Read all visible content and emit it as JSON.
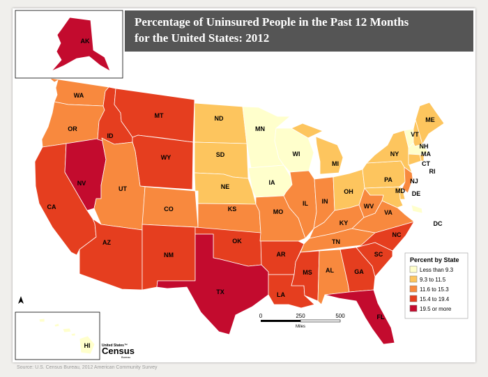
{
  "title": {
    "line1": "Percentage of Uninsured People in the Past 12 Months",
    "line2": "for the United States: 2012"
  },
  "colors": {
    "class1": "#ffffcc",
    "class2": "#fdc55e",
    "class3": "#f8893e",
    "class4": "#e53e1f",
    "class5": "#c30b2e",
    "state_stroke": "#ffffff",
    "title_bar": "#555555"
  },
  "legend": {
    "title": "Percent by State",
    "classes": [
      {
        "label": "Less than 9.3",
        "color": "#ffffcc"
      },
      {
        "label": "9.3 to 11.5",
        "color": "#fdc55e"
      },
      {
        "label": "11.6 to 15.3",
        "color": "#f8893e"
      },
      {
        "label": "15.4 to 19.4",
        "color": "#e53e1f"
      },
      {
        "label": "19.5 or more",
        "color": "#c30b2e"
      }
    ]
  },
  "scale_bar": {
    "tick_0": "0",
    "tick_1": "250",
    "tick_2": "500",
    "unit": "Miles"
  },
  "north_arrow": {
    "icon": "north-arrow-icon"
  },
  "logo": {
    "line1": "United States™",
    "line2": "Census",
    "line3": "Bureau"
  },
  "source": "Source: U.S. Census Bureau, 2012 American Community Survey",
  "states": [
    {
      "abbr": "AK",
      "class": 5
    },
    {
      "abbr": "HI",
      "class": 1
    },
    {
      "abbr": "WA",
      "class": 3
    },
    {
      "abbr": "OR",
      "class": 3
    },
    {
      "abbr": "CA",
      "class": 4
    },
    {
      "abbr": "NV",
      "class": 5
    },
    {
      "abbr": "ID",
      "class": 4
    },
    {
      "abbr": "MT",
      "class": 4
    },
    {
      "abbr": "WY",
      "class": 4
    },
    {
      "abbr": "UT",
      "class": 3
    },
    {
      "abbr": "CO",
      "class": 3
    },
    {
      "abbr": "AZ",
      "class": 4
    },
    {
      "abbr": "NM",
      "class": 4
    },
    {
      "abbr": "ND",
      "class": 2
    },
    {
      "abbr": "SD",
      "class": 2
    },
    {
      "abbr": "NE",
      "class": 2
    },
    {
      "abbr": "KS",
      "class": 3
    },
    {
      "abbr": "OK",
      "class": 4
    },
    {
      "abbr": "TX",
      "class": 5
    },
    {
      "abbr": "MN",
      "class": 1
    },
    {
      "abbr": "IA",
      "class": 1
    },
    {
      "abbr": "MO",
      "class": 3
    },
    {
      "abbr": "AR",
      "class": 4
    },
    {
      "abbr": "LA",
      "class": 4
    },
    {
      "abbr": "WI",
      "class": 1
    },
    {
      "abbr": "IL",
      "class": 3
    },
    {
      "abbr": "MI",
      "class": 2
    },
    {
      "abbr": "IN",
      "class": 3
    },
    {
      "abbr": "OH",
      "class": 2
    },
    {
      "abbr": "KY",
      "class": 3
    },
    {
      "abbr": "TN",
      "class": 3
    },
    {
      "abbr": "MS",
      "class": 4
    },
    {
      "abbr": "AL",
      "class": 3
    },
    {
      "abbr": "GA",
      "class": 4
    },
    {
      "abbr": "FL",
      "class": 5
    },
    {
      "abbr": "SC",
      "class": 4
    },
    {
      "abbr": "NC",
      "class": 4
    },
    {
      "abbr": "VA",
      "class": 3
    },
    {
      "abbr": "WV",
      "class": 3
    },
    {
      "abbr": "PA",
      "class": 2
    },
    {
      "abbr": "NY",
      "class": 2
    },
    {
      "abbr": "VT",
      "class": 1
    },
    {
      "abbr": "NH",
      "class": 2
    },
    {
      "abbr": "ME",
      "class": 2
    },
    {
      "abbr": "MA",
      "class": 1
    },
    {
      "abbr": "RI",
      "class": 2
    },
    {
      "abbr": "CT",
      "class": 2
    },
    {
      "abbr": "NJ",
      "class": 3
    },
    {
      "abbr": "DE",
      "class": 2
    },
    {
      "abbr": "MD",
      "class": 2
    },
    {
      "abbr": "DC",
      "class": 1
    }
  ]
}
